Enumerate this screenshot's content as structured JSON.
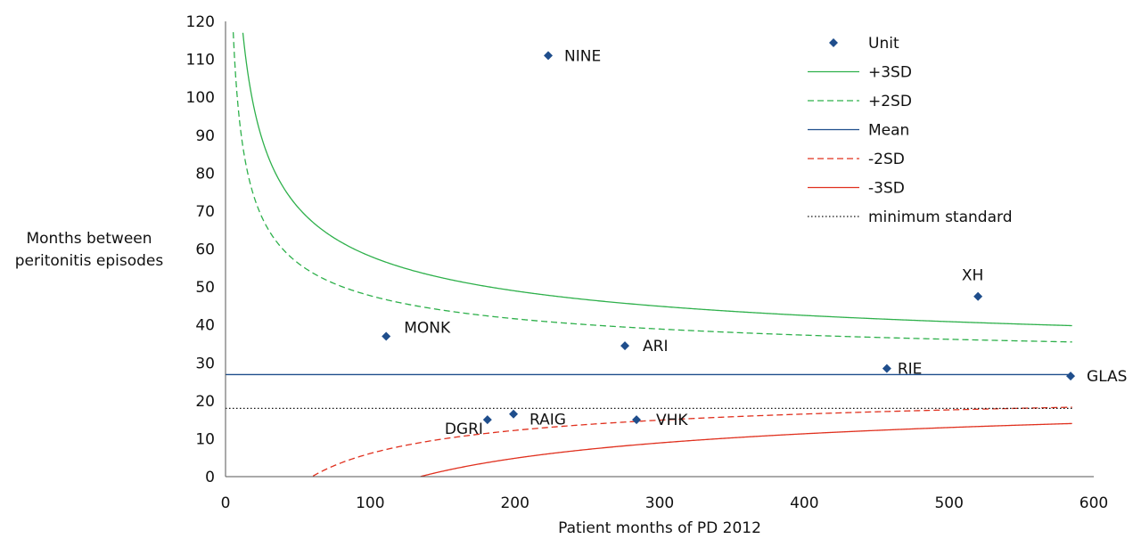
{
  "chart_data": {
    "type": "scatter",
    "xlabel": "Patient months of PD 2012",
    "ylabel_lines": [
      "Months between",
      "peritonitis episodes"
    ],
    "xlim": [
      0,
      600
    ],
    "ylim": [
      0,
      120
    ],
    "x_ticks": [
      0,
      100,
      200,
      300,
      400,
      500,
      600
    ],
    "y_ticks": [
      0,
      10,
      20,
      30,
      40,
      50,
      60,
      70,
      80,
      90,
      100,
      110,
      120
    ],
    "grid": false,
    "legend_position": "top-right",
    "units": [
      {
        "label": "NINE",
        "x": 223,
        "y": 111
      },
      {
        "label": "MONK",
        "x": 111,
        "y": 37
      },
      {
        "label": "ARI",
        "x": 276,
        "y": 34.5
      },
      {
        "label": "XH",
        "x": 520,
        "y": 47.5
      },
      {
        "label": "RIE",
        "x": 457,
        "y": 28.5
      },
      {
        "label": "GLAS",
        "x": 584,
        "y": 26.5
      },
      {
        "label": "DGRI",
        "x": 181,
        "y": 15
      },
      {
        "label": "RAIG",
        "x": 199,
        "y": 16.5
      },
      {
        "label": "VHK",
        "x": 284,
        "y": 15
      }
    ],
    "mean": 26.9,
    "minimum_standard": 18,
    "x_max": 585,
    "series": [
      {
        "name": "Unit",
        "kind": "points",
        "color": "#1f4e8c"
      },
      {
        "name": "+3SD",
        "kind": "line",
        "z": 3,
        "dash": "solid",
        "color": "#2eb04b"
      },
      {
        "name": "+2SD",
        "kind": "line",
        "z": 2,
        "dash": "dashed",
        "color": "#2eb04b"
      },
      {
        "name": "Mean",
        "kind": "line",
        "z": 0,
        "dash": "solid",
        "color": "#1f4e8c"
      },
      {
        "name": "-2SD",
        "kind": "line",
        "z": -2,
        "dash": "dashed",
        "color": "#e0301e"
      },
      {
        "name": "-3SD",
        "kind": "line",
        "z": -3,
        "dash": "solid",
        "color": "#e0301e"
      },
      {
        "name": "minimum standard",
        "kind": "line",
        "dash": "dotted",
        "color": "#111111"
      }
    ]
  }
}
